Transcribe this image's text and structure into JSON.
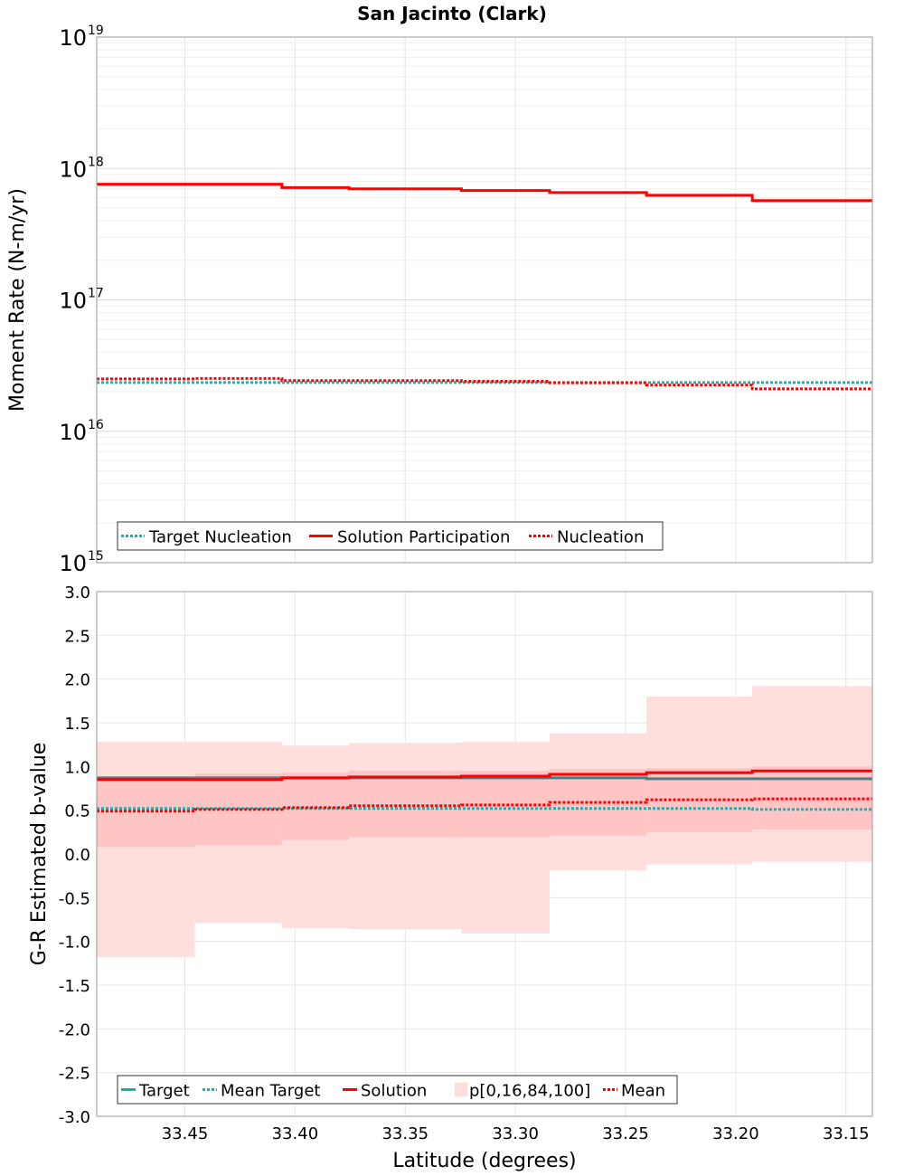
{
  "colors": {
    "solution": "#ff0000",
    "target": "#1f9a9a",
    "target_dotted": "#17b3b3",
    "band_outer": "#ffdede",
    "band_inner": "#ffc4c4",
    "grid": "#e6e6e6",
    "frame": "#999999"
  },
  "chart_data": [
    {
      "type": "line",
      "title": "San Jacinto (Clark)",
      "xlabel": "",
      "ylabel": "Moment Rate (N-m/yr)",
      "yscale": "log",
      "xlim": [
        33.49,
        33.138
      ],
      "ylim": [
        1000000000000000.0,
        1e+19
      ],
      "x_bin_edges": [
        33.49,
        33.4455,
        33.406,
        33.3755,
        33.3245,
        33.2845,
        33.2405,
        33.1925,
        33.138
      ],
      "yticks": [
        {
          "base": "10",
          "exp": "19"
        },
        {
          "base": "10",
          "exp": "18"
        },
        {
          "base": "10",
          "exp": "17"
        },
        {
          "base": "10",
          "exp": "16"
        },
        {
          "base": "10",
          "exp": "15"
        }
      ],
      "series": [
        {
          "name": "Target Nucleation",
          "style": "dotted",
          "color": "target_dotted",
          "values": [
            2.35e+16,
            2.35e+16,
            2.35e+16,
            2.35e+16,
            2.35e+16,
            2.35e+16,
            2.35e+16,
            2.35e+16
          ]
        },
        {
          "name": "Solution Participation",
          "style": "solid",
          "color": "solution",
          "values": [
            7.6e+17,
            7.6e+17,
            7.15e+17,
            7e+17,
            6.8e+17,
            6.55e+17,
            6.25e+17,
            5.7e+17
          ]
        },
        {
          "name": "Nucleation",
          "style": "dotted",
          "color": "solution",
          "values": [
            2.5e+16,
            2.52e+16,
            2.43e+16,
            2.43e+16,
            2.4e+16,
            2.34e+16,
            2.25e+16,
            2.1e+16
          ]
        }
      ],
      "legend": {
        "placement": "bottom-left",
        "entries": [
          "Target Nucleation",
          "Solution Participation",
          "Nucleation"
        ]
      }
    },
    {
      "type": "line",
      "title": "",
      "xlabel": "Latitude (degrees)",
      "ylabel": "G-R Estimated b-value",
      "xlim": [
        33.49,
        33.138
      ],
      "ylim": [
        -3.0,
        3.0
      ],
      "x_bin_edges": [
        33.49,
        33.4455,
        33.406,
        33.3755,
        33.3245,
        33.2845,
        33.2405,
        33.1925,
        33.138
      ],
      "xticks": [
        "33.45",
        "33.40",
        "33.35",
        "33.30",
        "33.25",
        "33.20",
        "33.15"
      ],
      "xtick_values": [
        33.45,
        33.4,
        33.35,
        33.3,
        33.25,
        33.2,
        33.15
      ],
      "yticks": [
        "3.0",
        "2.5",
        "2.0",
        "1.5",
        "1.0",
        "0.5",
        "0.0",
        "-0.5",
        "-1.0",
        "-1.5",
        "-2.0",
        "-2.5",
        "-3.0"
      ],
      "ytick_values": [
        3.0,
        2.5,
        2.0,
        1.5,
        1.0,
        0.5,
        0.0,
        -0.5,
        -1.0,
        -1.5,
        -2.0,
        -2.5,
        -3.0
      ],
      "bands": {
        "p0": [
          -1.18,
          -0.79,
          -0.85,
          -0.86,
          -0.91,
          -0.19,
          -0.12,
          -0.09
        ],
        "p16": [
          0.08,
          0.1,
          0.16,
          0.19,
          0.19,
          0.21,
          0.25,
          0.28
        ],
        "p84": [
          0.88,
          0.92,
          0.93,
          0.95,
          0.95,
          0.97,
          0.98,
          1.0
        ],
        "p100": [
          1.28,
          1.28,
          1.24,
          1.27,
          1.28,
          1.38,
          1.8,
          1.92
        ]
      },
      "series": [
        {
          "name": "Target",
          "style": "solid",
          "color": "target",
          "values": [
            0.87,
            0.87,
            0.87,
            0.87,
            0.87,
            0.87,
            0.86,
            0.86
          ]
        },
        {
          "name": "Mean Target",
          "style": "dotted",
          "color": "target_dotted",
          "values": [
            0.52,
            0.52,
            0.52,
            0.52,
            0.52,
            0.52,
            0.52,
            0.51
          ]
        },
        {
          "name": "Solution",
          "style": "solid",
          "color": "solution",
          "values": [
            0.85,
            0.85,
            0.87,
            0.88,
            0.89,
            0.91,
            0.93,
            0.95
          ]
        },
        {
          "name": "Mean",
          "style": "dotted",
          "color": "solution",
          "values": [
            0.49,
            0.51,
            0.53,
            0.55,
            0.56,
            0.59,
            0.62,
            0.63
          ]
        }
      ],
      "legend": {
        "placement": "bottom-left",
        "entries": [
          "Target",
          "Mean Target",
          "Solution",
          "p[0,16,84,100]",
          "Mean"
        ]
      }
    }
  ]
}
